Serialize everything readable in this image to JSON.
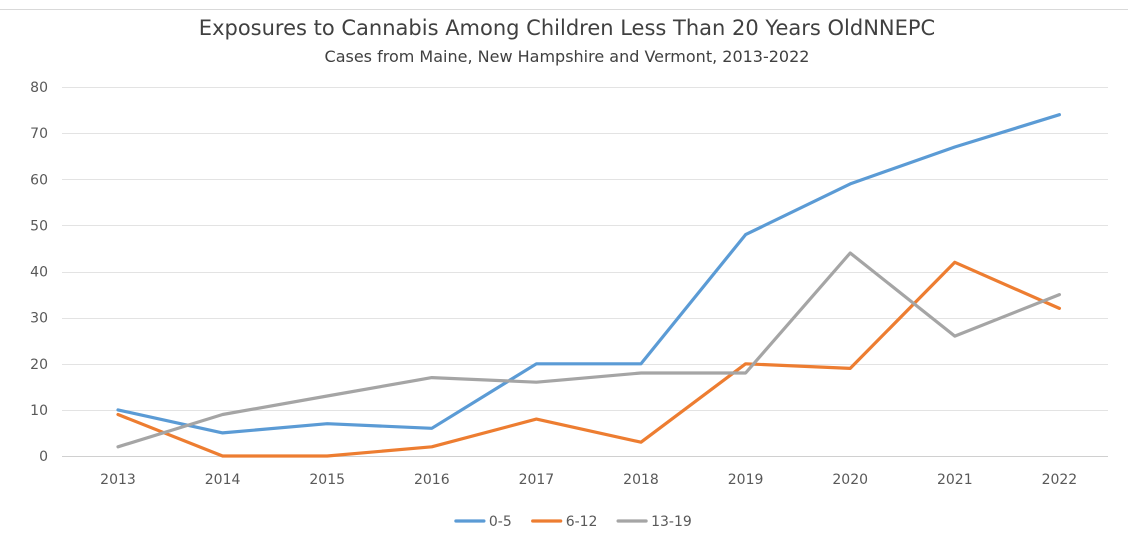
{
  "chart_data": {
    "type": "line",
    "title": "Exposures to Cannabis Among Children Less Than 20 Years OldNNEPC",
    "subtitle": "Cases from Maine, New Hampshire and Vermont, 2013-2022",
    "categories": [
      "2013",
      "2014",
      "2015",
      "2016",
      "2017",
      "2018",
      "2019",
      "2020",
      "2021",
      "2022"
    ],
    "ylim": [
      0,
      80
    ],
    "yticks": [
      0,
      10,
      20,
      30,
      40,
      50,
      60,
      70,
      80
    ],
    "grid": true,
    "legend_position": "bottom",
    "series": [
      {
        "name": "0-5",
        "color": "#5b9bd5",
        "values": [
          10,
          5,
          7,
          6,
          20,
          20,
          48,
          59,
          67,
          74
        ]
      },
      {
        "name": "6-12",
        "color": "#ed7d31",
        "values": [
          9,
          0,
          0,
          2,
          8,
          3,
          20,
          19,
          42,
          32
        ]
      },
      {
        "name": "13-19",
        "color": "#a5a5a5",
        "values": [
          2,
          9,
          13,
          17,
          16,
          18,
          18,
          44,
          26,
          35
        ]
      }
    ]
  }
}
